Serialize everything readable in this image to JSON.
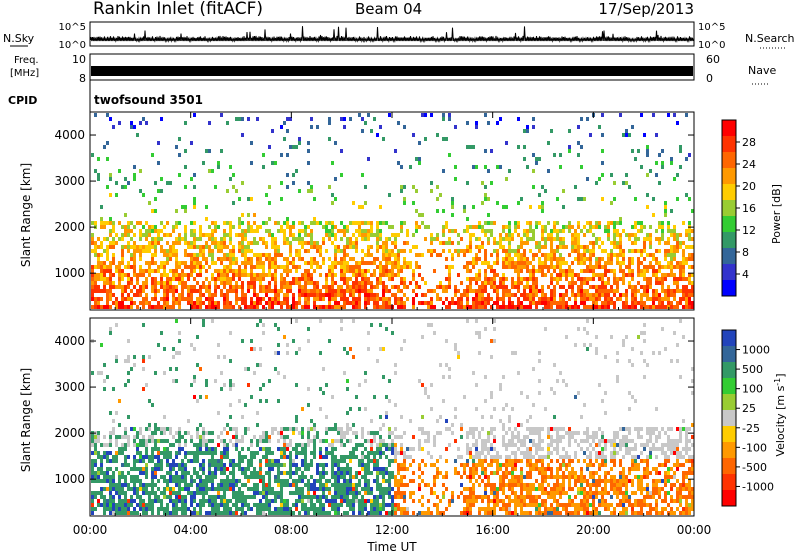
{
  "header": {
    "station": "Rankin Inlet (fitACF)",
    "beam": "Beam 04",
    "date": "17/Sep/2013"
  },
  "top_panels": {
    "nsky_label": "N.Sky",
    "nsearch_label": "N.Search",
    "count_ticks": [
      "10^5",
      "10^0"
    ],
    "freq_label_1": "Freq.",
    "freq_label_2": "[MHz]",
    "freq_ticks": [
      "10",
      "8"
    ],
    "nave_label": "Nave",
    "nave_ticks": [
      "60",
      "0"
    ],
    "cpid_label": "CPID",
    "cpid_value": "twofsound 3501"
  },
  "colorbars": {
    "power": {
      "title": "Power [dB]",
      "ticks": [
        "28",
        "24",
        "20",
        "16",
        "12",
        "8",
        "4"
      ],
      "colors": [
        "#ff0000",
        "#ff3300",
        "#ff6600",
        "#ff9900",
        "#ffcc00",
        "#99cc33",
        "#33cc33",
        "#339966",
        "#336699",
        "#3333cc",
        "#0000ff"
      ]
    },
    "velocity": {
      "title": "Velocity [m s^-1]",
      "ticks": [
        "1000",
        "500",
        "100",
        "25",
        "-25",
        "-100",
        "-500",
        "-1000"
      ],
      "colors": [
        "#2244bb",
        "#336699",
        "#339966",
        "#33cc33",
        "#99cc33",
        "#c8c8c8",
        "#ffcc00",
        "#ff9900",
        "#ff6600",
        "#ff3300",
        "#ff0000"
      ]
    }
  },
  "axes": {
    "ylabel": "Slant Range [km]",
    "xlabel": "Time UT"
  },
  "chart_data": [
    {
      "type": "heatmap",
      "title": "Power",
      "xlabel": "Time UT",
      "ylabel": "Slant Range [km]",
      "x_ticks": [
        "00:00",
        "04:00",
        "08:00",
        "12:00",
        "16:00",
        "20:00",
        "00:00"
      ],
      "y_ticks": [
        1000,
        2000,
        3000,
        4000
      ],
      "xlim": [
        "00:00",
        "24:00"
      ],
      "ylim": [
        200,
        4500
      ],
      "colorbar_label": "Power [dB]",
      "colorbar_ticks": [
        28,
        24,
        20,
        16,
        12,
        8,
        4
      ]
    },
    {
      "type": "heatmap",
      "title": "Velocity",
      "xlabel": "Time UT",
      "ylabel": "Slant Range [km]",
      "x_ticks": [
        "00:00",
        "04:00",
        "08:00",
        "12:00",
        "16:00",
        "20:00",
        "00:00"
      ],
      "y_ticks": [
        1000,
        2000,
        3000,
        4000
      ],
      "xlim": [
        "00:00",
        "24:00"
      ],
      "ylim": [
        200,
        4500
      ],
      "colorbar_label": "Velocity [m s^-1]",
      "colorbar_ticks": [
        1000,
        500,
        100,
        25,
        -25,
        -100,
        -500,
        -1000
      ]
    }
  ]
}
